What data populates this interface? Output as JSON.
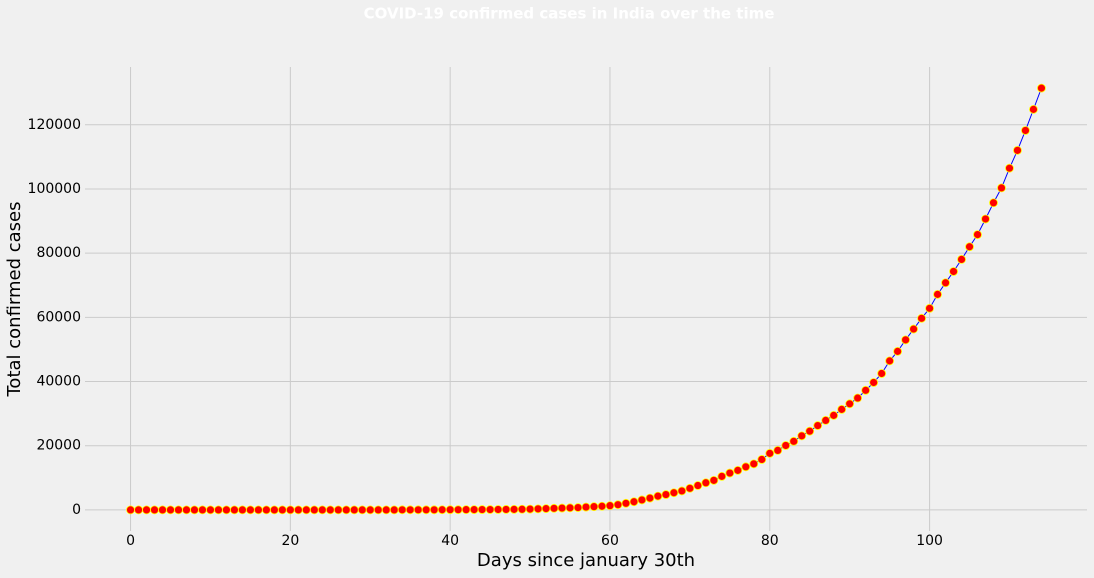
{
  "chart_data": {
    "type": "line",
    "title": "COVID-19 confirmed cases in India over the time",
    "x_label": "Days since january 30th",
    "y_label": "Total confirmed cases",
    "x": [
      0,
      1,
      2,
      3,
      4,
      5,
      6,
      7,
      8,
      9,
      10,
      11,
      12,
      13,
      14,
      15,
      16,
      17,
      18,
      19,
      20,
      21,
      22,
      23,
      24,
      25,
      26,
      27,
      28,
      29,
      30,
      31,
      32,
      33,
      34,
      35,
      36,
      37,
      38,
      39,
      40,
      41,
      42,
      43,
      44,
      45,
      46,
      47,
      48,
      49,
      50,
      51,
      52,
      53,
      54,
      55,
      56,
      57,
      58,
      59,
      60,
      61,
      62,
      63,
      64,
      65,
      66,
      67,
      68,
      69,
      70,
      71,
      72,
      73,
      74,
      75,
      76,
      77,
      78,
      79,
      80,
      81,
      82,
      83,
      84,
      85,
      86,
      87,
      88,
      89,
      90,
      91,
      92,
      93,
      94,
      95,
      96,
      97,
      98,
      99,
      100,
      101,
      102,
      103,
      104,
      105,
      106,
      107,
      108,
      109,
      110,
      111,
      112,
      113,
      114
    ],
    "series": [
      {
        "name": "Confirmed",
        "color": "#0000ff",
        "marker_color": "#ff0000",
        "marker_edge_color": "#ffff00",
        "values": [
          1,
          1,
          1,
          2,
          3,
          3,
          3,
          3,
          3,
          3,
          3,
          3,
          3,
          3,
          3,
          3,
          3,
          3,
          3,
          3,
          3,
          3,
          3,
          3,
          3,
          3,
          3,
          3,
          3,
          3,
          3,
          3,
          5,
          6,
          28,
          30,
          31,
          34,
          39,
          48,
          63,
          71,
          81,
          91,
          102,
          112,
          126,
          146,
          171,
          198,
          256,
          334,
          403,
          497,
          571,
          657,
          730,
          883,
          1019,
          1139,
          1326,
          1635,
          2059,
          2545,
          3105,
          3684,
          4293,
          4777,
          5350,
          5915,
          6728,
          7599,
          8453,
          9211,
          10454,
          11487,
          12322,
          13430,
          14353,
          15722,
          17615,
          18539,
          20080,
          21370,
          23077,
          24530,
          26283,
          27890,
          29451,
          31324,
          33062,
          34863,
          37257,
          39699,
          42505,
          46437,
          49400,
          52987,
          56351,
          59695,
          62808,
          67161,
          70768,
          74292,
          78055,
          81997,
          85784,
          90648,
          95698,
          100328,
          106475,
          112028,
          118226,
          124794,
          131423
        ]
      }
    ],
    "xlim": [
      -5.7,
      119.7
    ],
    "ylim": [
      -6570,
      138000
    ],
    "xticks": [
      0,
      20,
      40,
      60,
      80,
      100
    ],
    "yticks": [
      0,
      20000,
      40000,
      60000,
      80000,
      100000,
      120000
    ],
    "grid": true
  }
}
